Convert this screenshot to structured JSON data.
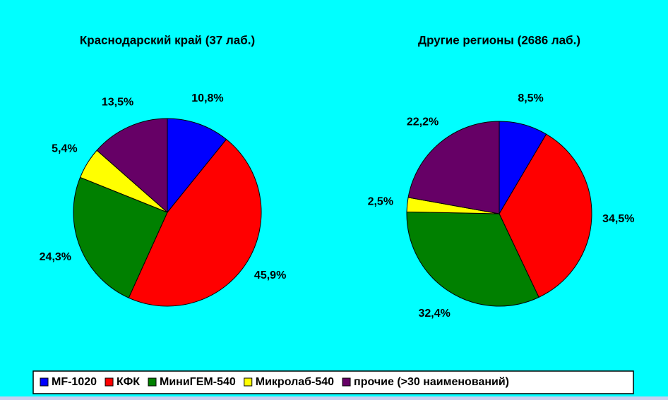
{
  "chart_data": [
    {
      "type": "pie",
      "title": "Краснодарский край (37 лаб.)",
      "values": [
        10.8,
        45.9,
        24.3,
        5.4,
        13.5
      ],
      "value_labels": [
        "10,8%",
        "45,9%",
        "24,3%",
        "5,4%",
        "13,5%"
      ]
    },
    {
      "type": "pie",
      "title": "Другие регионы (2686 лаб.)",
      "values": [
        8.5,
        34.5,
        32.4,
        2.5,
        22.2
      ],
      "value_labels": [
        "8,5%",
        "34,5%",
        "32,4%",
        "2,5%",
        "22,2%"
      ]
    }
  ],
  "legend": {
    "labels": [
      "MF-1020",
      "КФК",
      "МиниГЕМ-540",
      "Микролаб-540",
      "прочие (>30 наименований)"
    ],
    "colors": [
      "#0000ff",
      "#ff0000",
      "#008000",
      "#ffff00",
      "#660066"
    ]
  }
}
